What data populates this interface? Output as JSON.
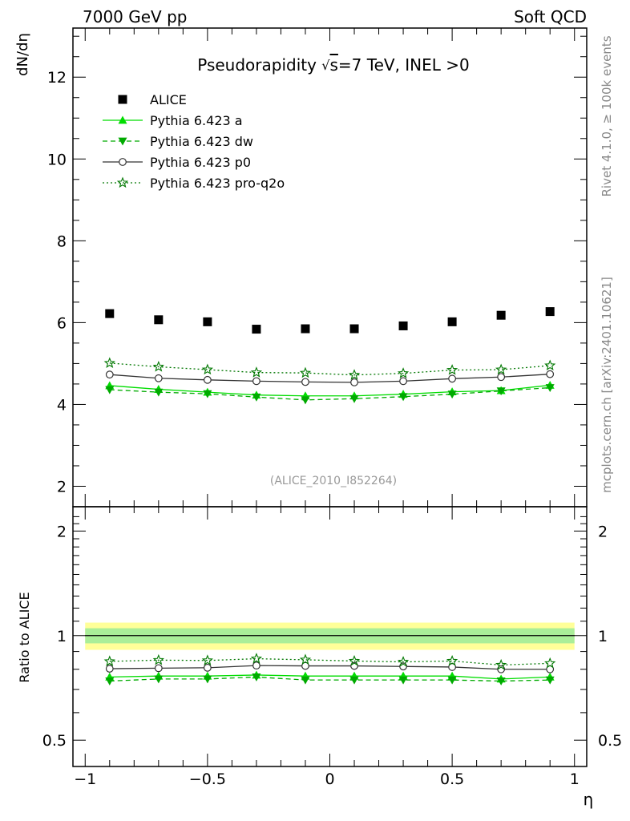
{
  "header": {
    "left": "7000 GeV pp",
    "right": "Soft QCD"
  },
  "side": {
    "rivet": "Rivet 4.1.0, ≥ 100k events",
    "mcplots": "mcplots.cern.ch [arXiv:2401.10621]"
  },
  "chart_data": [
    {
      "type": "scatter",
      "title_prefix": "Pseudorapidity ",
      "title_sqrt": "√",
      "title_s": "s",
      "title_suffix": "=7 TeV, INEL >0",
      "ylabel": "dN/dη",
      "ylim": [
        1.5,
        13.2
      ],
      "yticks": [
        2,
        4,
        6,
        8,
        10,
        12
      ],
      "watermark": "(ALICE_2010_I852264)",
      "x": [
        -0.9,
        -0.7,
        -0.5,
        -0.3,
        -0.1,
        0.1,
        0.3,
        0.5,
        0.7,
        0.9
      ],
      "series": [
        {
          "name": "ALICE",
          "color": "#000000",
          "marker": "square",
          "line": "none",
          "values": [
            6.22,
            6.07,
            6.02,
            5.84,
            5.85,
            5.85,
            5.92,
            6.02,
            6.18,
            6.27
          ]
        },
        {
          "name": "Pythia 6.423 a",
          "color": "#00dd00",
          "marker": "triangle-up",
          "line": "solid",
          "values": [
            4.46,
            4.37,
            4.3,
            4.23,
            4.21,
            4.21,
            4.25,
            4.31,
            4.34,
            4.47
          ]
        },
        {
          "name": "Pythia 6.423 dw",
          "color": "#00aa00",
          "marker": "triangle-down",
          "line": "dashed",
          "values": [
            4.36,
            4.3,
            4.26,
            4.18,
            4.11,
            4.14,
            4.19,
            4.25,
            4.33,
            4.41
          ]
        },
        {
          "name": "Pythia 6.423 p0",
          "color": "#333333",
          "marker": "circle-open",
          "line": "solid",
          "values": [
            4.73,
            4.64,
            4.6,
            4.57,
            4.55,
            4.54,
            4.57,
            4.63,
            4.67,
            4.74
          ]
        },
        {
          "name": "Pythia 6.423 pro-q2o",
          "color": "#007700",
          "marker": "star-open",
          "line": "dotted",
          "values": [
            5.01,
            4.92,
            4.85,
            4.78,
            4.77,
            4.72,
            4.76,
            4.84,
            4.85,
            4.95
          ]
        }
      ]
    },
    {
      "type": "scatter",
      "ylabel": "Ratio to ALICE",
      "xlabel": "η",
      "ylim": [
        0.42,
        2.35
      ],
      "yscale": "log",
      "yticks": [
        0.5,
        1,
        2
      ],
      "xlim": [
        -1.05,
        1.05
      ],
      "xticks": [
        -1,
        -0.5,
        0,
        0.5,
        1
      ],
      "x": [
        -0.9,
        -0.7,
        -0.5,
        -0.3,
        -0.1,
        0.1,
        0.3,
        0.5,
        0.7,
        0.9
      ],
      "band_outer": [
        0.91,
        1.09
      ],
      "band_inner": [
        0.95,
        1.05
      ],
      "series": [
        {
          "name": "Pythia 6.423 a",
          "color": "#00dd00",
          "marker": "triangle-up",
          "line": "solid",
          "values": [
            0.76,
            0.765,
            0.765,
            0.77,
            0.765,
            0.765,
            0.765,
            0.765,
            0.75,
            0.76
          ]
        },
        {
          "name": "Pythia 6.423 dw",
          "color": "#00aa00",
          "marker": "triangle-down",
          "line": "dashed",
          "values": [
            0.74,
            0.75,
            0.75,
            0.76,
            0.745,
            0.745,
            0.745,
            0.745,
            0.74,
            0.745
          ]
        },
        {
          "name": "Pythia 6.423 p0",
          "color": "#333333",
          "marker": "circle-open",
          "line": "solid",
          "values": [
            0.803,
            0.806,
            0.808,
            0.82,
            0.818,
            0.818,
            0.815,
            0.812,
            0.8,
            0.8
          ]
        },
        {
          "name": "Pythia 6.423 pro-q2o",
          "color": "#007700",
          "marker": "star-open",
          "line": "dotted",
          "values": [
            0.843,
            0.85,
            0.848,
            0.858,
            0.852,
            0.845,
            0.84,
            0.845,
            0.823,
            0.832
          ]
        }
      ]
    }
  ]
}
